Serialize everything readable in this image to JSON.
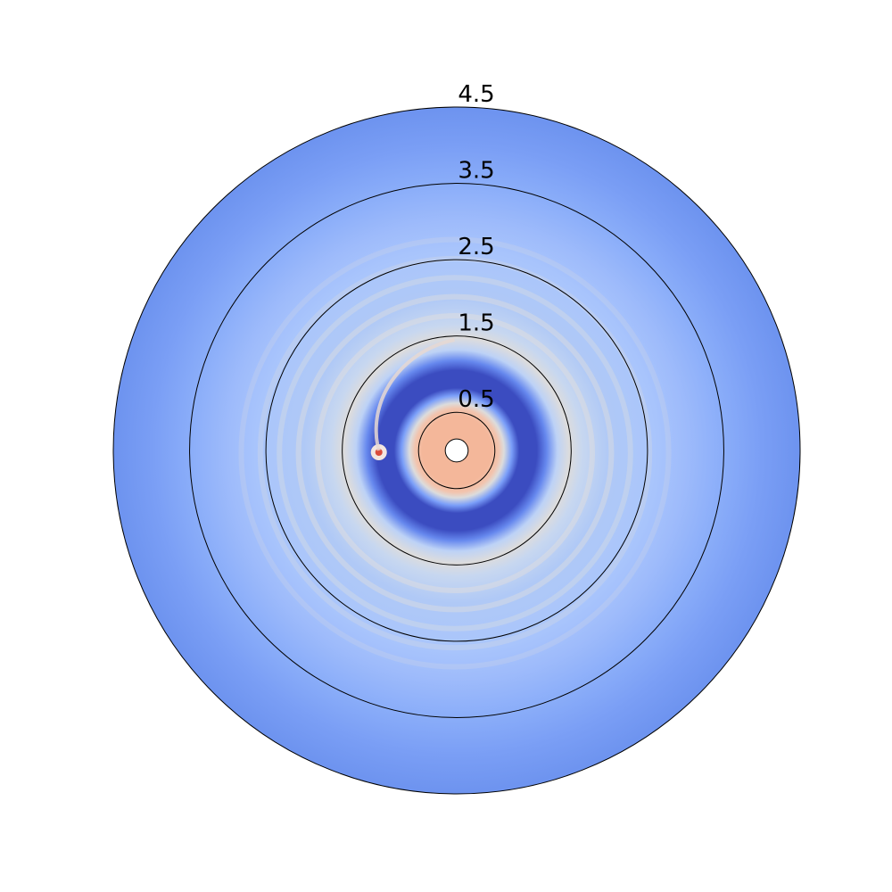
{
  "chart_data": {
    "type": "heatmap",
    "projection": "polar",
    "title": "",
    "rlim": [
      0,
      4.5
    ],
    "inner_hole_r": 0.15,
    "radial_ticks": [
      0.5,
      1.5,
      2.5,
      3.5,
      4.5
    ],
    "radial_tick_labels": [
      "0.5",
      "1.5",
      "2.5",
      "3.5",
      "4.5"
    ],
    "angular_tick_labels": [],
    "grid": true,
    "colormap": "coolwarm",
    "colorbar": false,
    "radial_profile": [
      {
        "r": 0.15,
        "color": "#f4b79a"
      },
      {
        "r": 0.45,
        "color": "#f4b79a"
      },
      {
        "r": 0.55,
        "color": "#f2c4ae"
      },
      {
        "r": 0.62,
        "color": "#dcdcdc"
      },
      {
        "r": 0.72,
        "color": "#7b9ff9"
      },
      {
        "r": 0.82,
        "color": "#3b4cc0"
      },
      {
        "r": 1.05,
        "color": "#3b4cc0"
      },
      {
        "r": 1.18,
        "color": "#6688ee"
      },
      {
        "r": 1.32,
        "color": "#bdd2f6"
      },
      {
        "r": 1.48,
        "color": "#dddcdc"
      },
      {
        "r": 1.65,
        "color": "#c7d7f0"
      },
      {
        "r": 2.0,
        "color": "#b0c9f6"
      },
      {
        "r": 2.6,
        "color": "#a9c5fc"
      },
      {
        "r": 3.0,
        "color": "#9ebbfb"
      },
      {
        "r": 3.5,
        "color": "#8aadf9"
      },
      {
        "r": 4.0,
        "color": "#7a9ef5"
      },
      {
        "r": 4.5,
        "color": "#6d93ef"
      }
    ],
    "faint_bands": [
      1.8,
      2.05,
      2.3,
      2.55,
      2.8
    ],
    "features": [
      {
        "name": "planet-source",
        "r": 1.02,
        "theta_deg": 180,
        "color": "#d94b3c"
      },
      {
        "name": "spiral-wake",
        "start_r": 1.02,
        "end_r": 1.45,
        "color": "#e6d8d2"
      }
    ]
  }
}
